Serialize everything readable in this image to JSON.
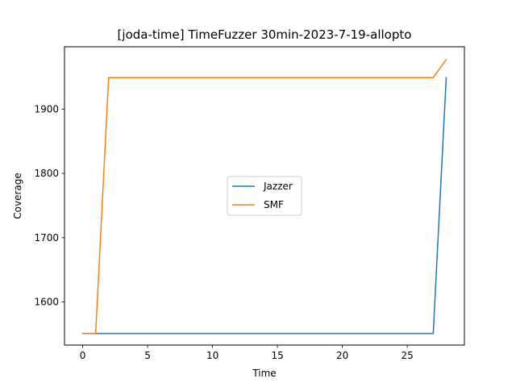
{
  "chart_data": {
    "type": "line",
    "title": "[joda-time] TimeFuzzer 30min-2023-7-19-allopto",
    "xlabel": "Time",
    "ylabel": "Coverage",
    "xlim": [
      -1.4,
      29.4
    ],
    "ylim": [
      1533,
      1997
    ],
    "xticks": [
      0,
      5,
      10,
      15,
      20,
      25
    ],
    "yticks": [
      1600,
      1700,
      1800,
      1900
    ],
    "grid": false,
    "legend_position": "center",
    "series": [
      {
        "name": "Jazzer",
        "color": "#1f77b4",
        "x": [
          0,
          1,
          2,
          27,
          28
        ],
        "y": [
          1551,
          1551,
          1551,
          1551,
          1949
        ]
      },
      {
        "name": "SMF",
        "color": "#ff7f0e",
        "x": [
          0,
          1,
          2,
          27,
          28
        ],
        "y": [
          1551,
          1551,
          1949,
          1949,
          1977
        ]
      }
    ]
  }
}
